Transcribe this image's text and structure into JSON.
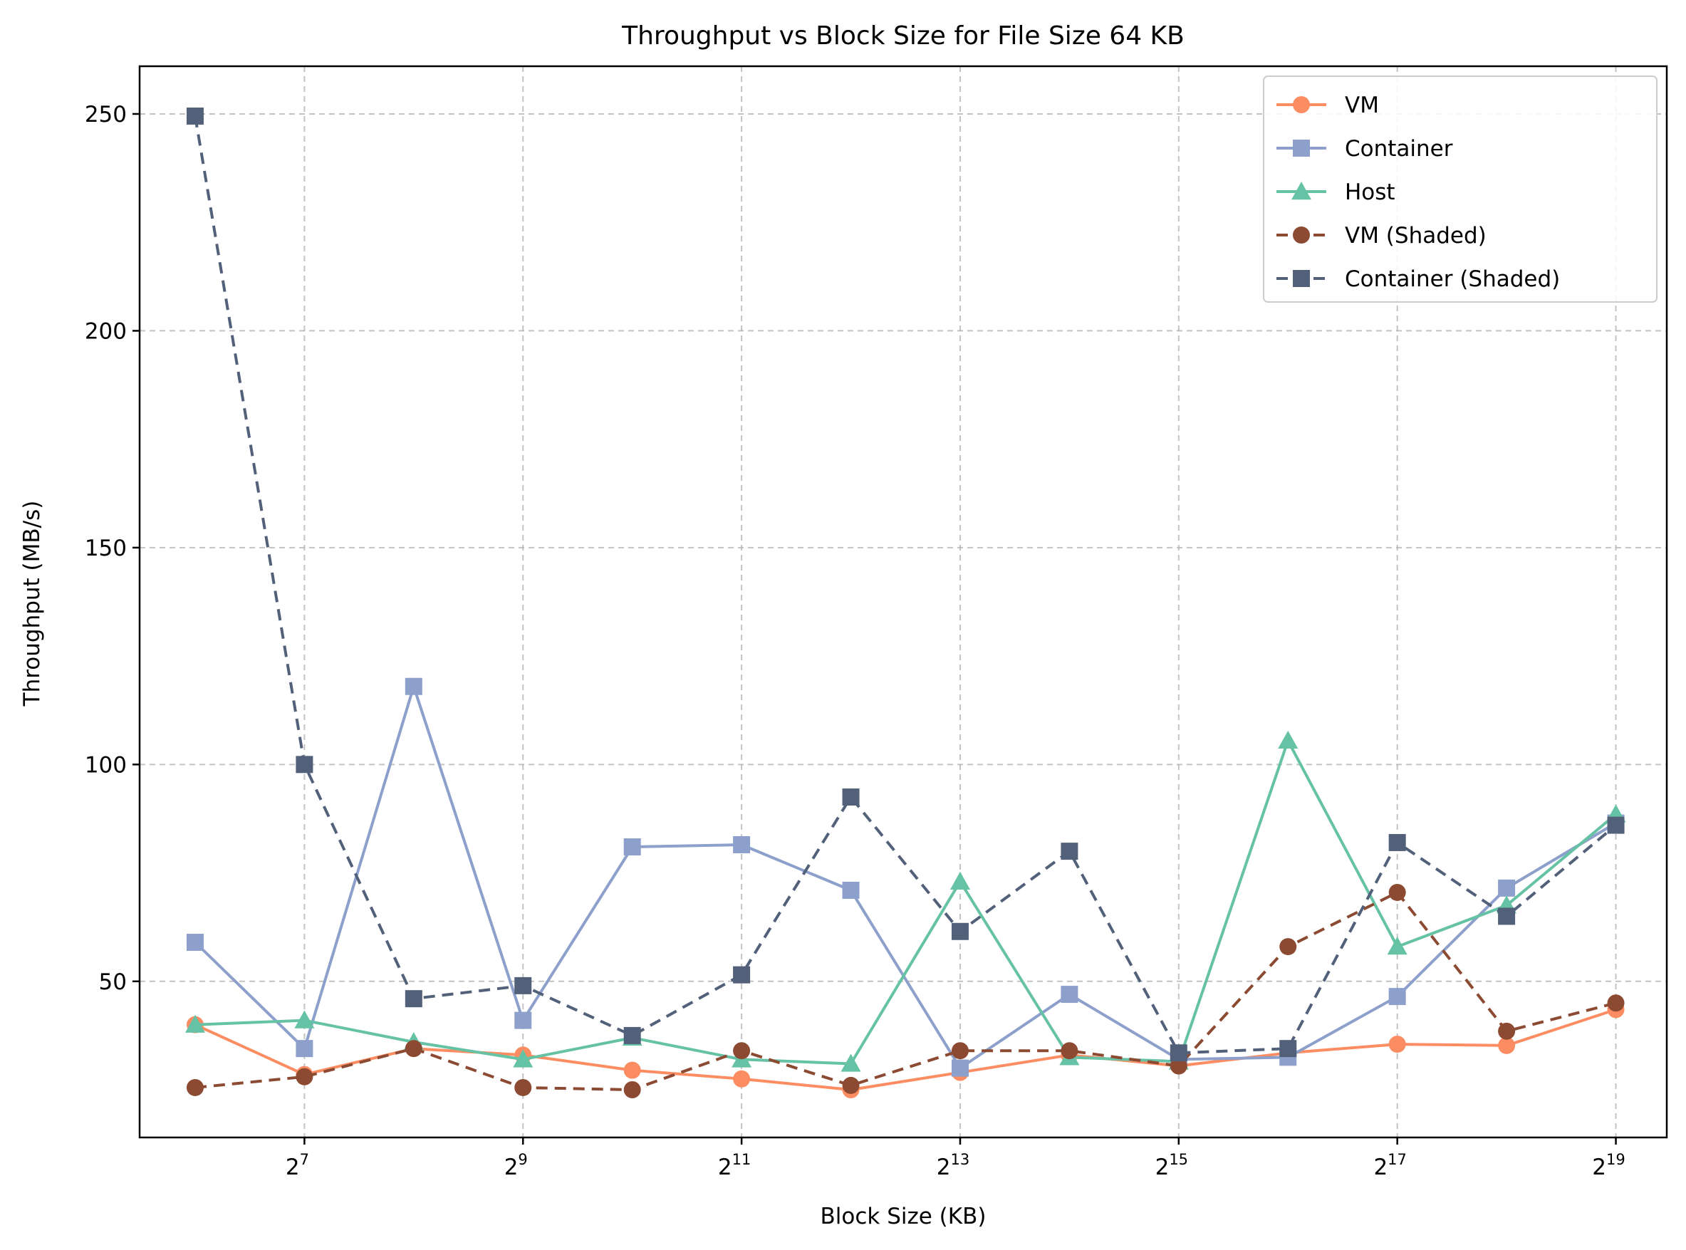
{
  "chart_data": {
    "type": "line",
    "title": "Throughput vs Block Size for File Size 64 KB",
    "xlabel": "Block Size (KB)",
    "ylabel": "Throughput (MB/s)",
    "x_scale": "log2",
    "x": [
      64,
      128,
      256,
      512,
      1024,
      2048,
      4096,
      8192,
      16384,
      32768,
      65536,
      131072,
      262144,
      524288
    ],
    "xlim": [
      45,
      724077
    ],
    "ylim": [
      14,
      261
    ],
    "x_ticks": [
      {
        "base": "2",
        "exp": "7",
        "value": 128
      },
      {
        "base": "2",
        "exp": "9",
        "value": 512
      },
      {
        "base": "2",
        "exp": "11",
        "value": 2048
      },
      {
        "base": "2",
        "exp": "13",
        "value": 8192
      },
      {
        "base": "2",
        "exp": "15",
        "value": 32768
      },
      {
        "base": "2",
        "exp": "17",
        "value": 131072
      },
      {
        "base": "2",
        "exp": "19",
        "value": 524288
      }
    ],
    "y_ticks": [
      50,
      100,
      150,
      200,
      250
    ],
    "grid": true,
    "legend_position": "top-right",
    "series": [
      {
        "name": "VM",
        "color": "#fc8d62",
        "marker": "circle",
        "dashed": false,
        "values": [
          40,
          28.5,
          34.5,
          33,
          29.5,
          27.5,
          25,
          29,
          33,
          30.5,
          33.5,
          35.5,
          35.2,
          43.5
        ]
      },
      {
        "name": "Container",
        "color": "#8da0cb",
        "marker": "square",
        "dashed": false,
        "values": [
          59,
          34.5,
          118,
          41,
          81,
          81.5,
          71,
          30,
          47,
          32,
          32.5,
          46.5,
          71.5,
          86.5
        ]
      },
      {
        "name": "Host",
        "color": "#66c2a5",
        "marker": "triangle",
        "dashed": false,
        "values": [
          40,
          41,
          36,
          32,
          37,
          32,
          31,
          73,
          32.5,
          31.5,
          105.5,
          58,
          67.5,
          88.5
        ]
      },
      {
        "name": "VM (Shaded)",
        "color": "#8c4a32",
        "marker": "circle",
        "dashed": true,
        "values": [
          25.5,
          28,
          34.5,
          25.5,
          25,
          34,
          26,
          34,
          34,
          30.5,
          58,
          70.5,
          38.5,
          45
        ]
      },
      {
        "name": "Container (Shaded)",
        "color": "#52607a",
        "marker": "square",
        "dashed": true,
        "values": [
          249.5,
          100,
          46,
          49,
          37.5,
          51.5,
          92.5,
          61.5,
          80,
          33.5,
          34.5,
          82,
          65,
          86
        ]
      }
    ]
  }
}
